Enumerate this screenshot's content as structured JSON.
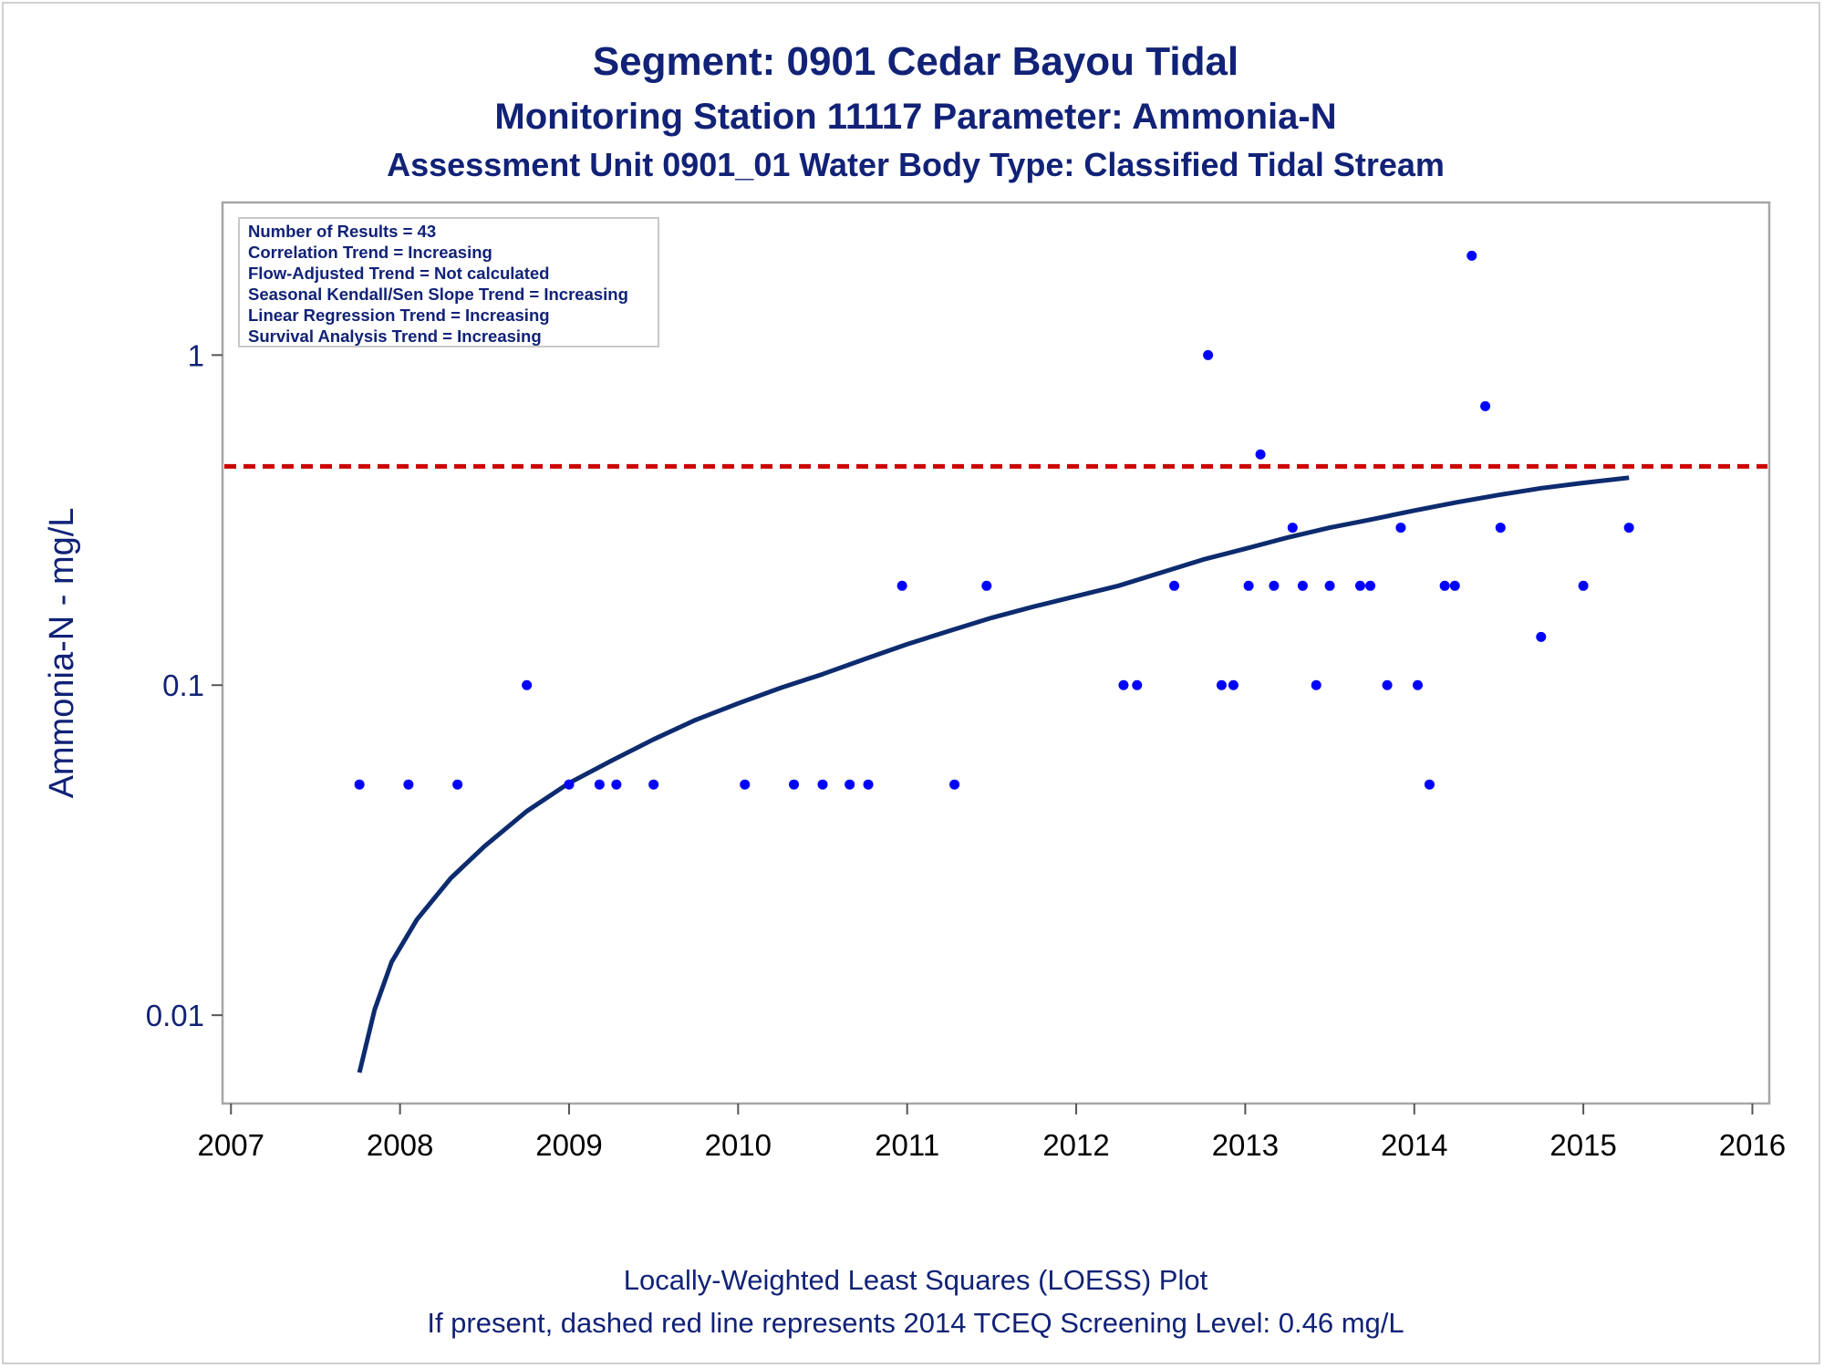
{
  "chart_data": {
    "type": "scatter",
    "title": "Segment: 0901  Cedar Bayou Tidal",
    "subtitle": "Monitoring Station 11117 Parameter: Ammonia-N",
    "subtitle2": "Assessment Unit 0901_01   Water Body Type: Classified Tidal Stream",
    "ylabel": "Ammonia-N - mg/L",
    "xlabel": "",
    "yscale": "log",
    "ylim": [
      0.0054,
      2.9
    ],
    "xlim": [
      2006.95,
      2016.1
    ],
    "xticks": [
      "2007",
      "2008",
      "2009",
      "2010",
      "2011",
      "2012",
      "2013",
      "2014",
      "2015",
      "2016"
    ],
    "xtick_values": [
      2007,
      2008,
      2009,
      2010,
      2011,
      2012,
      2013,
      2014,
      2015,
      2016
    ],
    "yticks": [
      "0.01",
      "0.1",
      "1"
    ],
    "ytick_values": [
      0.01,
      0.1,
      1
    ],
    "grid": false,
    "legend": "none",
    "inset_box": {
      "placement": "top-left",
      "lines": [
        "Number of Results = 43",
        "Correlation Trend = Increasing",
        "Flow-Adjusted Trend = Not calculated",
        "Seasonal Kendall/Sen Slope Trend = Increasing",
        "Linear Regression Trend = Increasing",
        "Survival Analysis Trend = Increasing"
      ]
    },
    "screening_level": {
      "value": 0.46,
      "color": "#cc0000",
      "style": "dashed"
    },
    "points": {
      "color": "#0000ff",
      "data": [
        [
          2007.76,
          0.05
        ],
        [
          2008.05,
          0.05
        ],
        [
          2008.34,
          0.05
        ],
        [
          2008.75,
          0.1
        ],
        [
          2009.0,
          0.05
        ],
        [
          2009.18,
          0.05
        ],
        [
          2009.28,
          0.05
        ],
        [
          2009.5,
          0.05
        ],
        [
          2010.04,
          0.05
        ],
        [
          2010.33,
          0.05
        ],
        [
          2010.5,
          0.05
        ],
        [
          2010.66,
          0.05
        ],
        [
          2010.77,
          0.05
        ],
        [
          2010.97,
          0.2
        ],
        [
          2011.28,
          0.05
        ],
        [
          2011.47,
          0.2
        ],
        [
          2012.28,
          0.1
        ],
        [
          2012.36,
          0.1
        ],
        [
          2012.58,
          0.2
        ],
        [
          2012.78,
          1.0
        ],
        [
          2012.86,
          0.1
        ],
        [
          2012.93,
          0.1
        ],
        [
          2013.02,
          0.2
        ],
        [
          2013.09,
          0.5
        ],
        [
          2013.17,
          0.2
        ],
        [
          2013.28,
          0.3
        ],
        [
          2013.34,
          0.2
        ],
        [
          2013.42,
          0.1
        ],
        [
          2013.5,
          0.2
        ],
        [
          2013.68,
          0.2
        ],
        [
          2013.74,
          0.2
        ],
        [
          2013.84,
          0.1
        ],
        [
          2013.92,
          0.3
        ],
        [
          2014.02,
          0.1
        ],
        [
          2014.09,
          0.05
        ],
        [
          2014.18,
          0.2
        ],
        [
          2014.24,
          0.2
        ],
        [
          2014.34,
          2.0
        ],
        [
          2014.42,
          0.7
        ],
        [
          2014.51,
          0.3
        ],
        [
          2014.75,
          0.14
        ],
        [
          2015.0,
          0.2
        ],
        [
          2015.27,
          0.3
        ]
      ]
    },
    "loess": {
      "color": "#0d2b6f",
      "data": [
        [
          2007.76,
          0.0067
        ],
        [
          2007.85,
          0.0104
        ],
        [
          2007.95,
          0.0145
        ],
        [
          2008.1,
          0.0195
        ],
        [
          2008.3,
          0.026
        ],
        [
          2008.5,
          0.0325
        ],
        [
          2008.75,
          0.0415
        ],
        [
          2009.0,
          0.0505
        ],
        [
          2009.25,
          0.059
        ],
        [
          2009.5,
          0.0685
        ],
        [
          2009.75,
          0.0785
        ],
        [
          2010.0,
          0.088
        ],
        [
          2010.25,
          0.098
        ],
        [
          2010.5,
          0.108
        ],
        [
          2010.75,
          0.12
        ],
        [
          2011.0,
          0.133
        ],
        [
          2011.25,
          0.146
        ],
        [
          2011.5,
          0.16
        ],
        [
          2011.75,
          0.173
        ],
        [
          2012.0,
          0.186
        ],
        [
          2012.25,
          0.2
        ],
        [
          2012.5,
          0.219
        ],
        [
          2012.75,
          0.24
        ],
        [
          2013.0,
          0.259
        ],
        [
          2013.25,
          0.28
        ],
        [
          2013.5,
          0.3
        ],
        [
          2013.75,
          0.318
        ],
        [
          2014.0,
          0.338
        ],
        [
          2014.25,
          0.358
        ],
        [
          2014.5,
          0.377
        ],
        [
          2014.75,
          0.395
        ],
        [
          2015.0,
          0.41
        ],
        [
          2015.27,
          0.425
        ]
      ]
    },
    "footnotes": [
      "Locally-Weighted Least Squares (LOESS) Plot",
      "If present, dashed red line represents 2014 TCEQ Screening Level: 0.46 mg/L"
    ]
  }
}
